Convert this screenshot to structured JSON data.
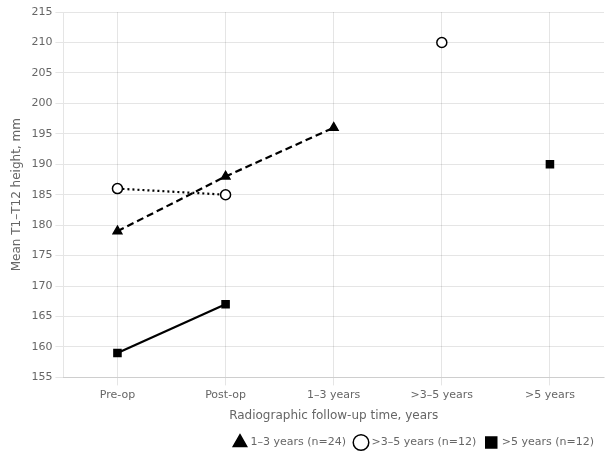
{
  "chart_data": {
    "type": "line",
    "x_label": "Radiographic follow-up time, years",
    "y_label": "Mean T1–T12 height, mm",
    "categories": [
      "Pre-op",
      "Post-op",
      "1–3 years",
      ">3–5 years",
      ">5 years"
    ],
    "series": [
      {
        "name": "1–3 years (n=24)",
        "color": "#000000",
        "marker": "triangle",
        "line_style": "dashed",
        "values": [
          179,
          188,
          196,
          null,
          null
        ]
      },
      {
        "name": ">3–5 years (n=12)",
        "color": "#000000",
        "marker": "open_circle",
        "line_style": "dotted",
        "values": [
          186,
          185,
          null,
          210,
          null
        ]
      },
      {
        "name": ">5 years (n=12)",
        "color": "#000000",
        "marker": "square",
        "line_style": "solid",
        "values": [
          159,
          167,
          null,
          null,
          190
        ]
      }
    ],
    "ylim": [
      155,
      215
    ],
    "yticks": [
      155,
      160,
      165,
      170,
      175,
      180,
      185,
      190,
      195,
      200,
      205,
      210,
      215
    ],
    "grid": true,
    "legend": "lower right"
  }
}
